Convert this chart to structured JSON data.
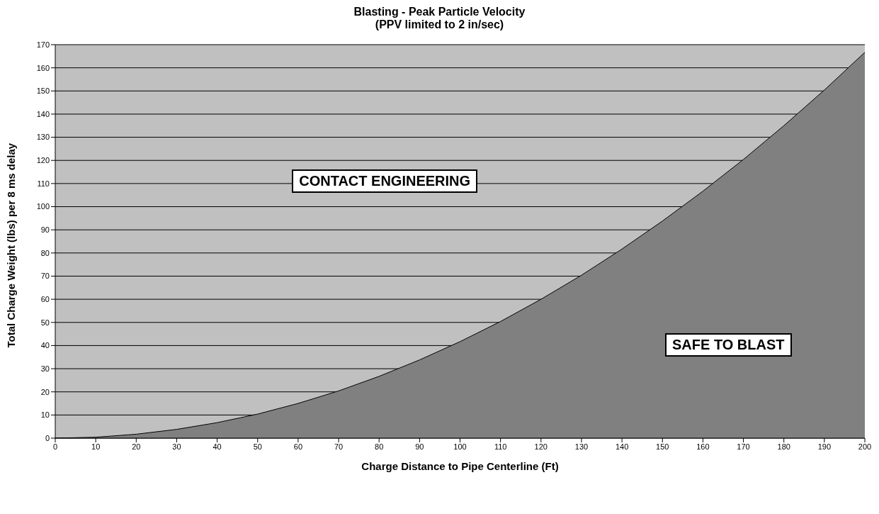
{
  "chart_data": {
    "type": "area",
    "title": "Blasting - Peak Particle Velocity",
    "subtitle": "(PPV limited to 2 in/sec)",
    "xlabel": "Charge Distance to Pipe Centerline (Ft)",
    "ylabel": "Total Charge Weight (lbs) per 8 ms delay",
    "x": [
      0,
      10,
      20,
      30,
      40,
      50,
      60,
      70,
      80,
      90,
      100,
      110,
      120,
      130,
      140,
      150,
      160,
      170,
      180,
      190,
      200
    ],
    "series": [
      {
        "color": "#808080",
        "values": [
          0,
          0.4,
          1.7,
          3.8,
          6.7,
          10.4,
          15,
          20.4,
          26.7,
          33.8,
          41.7,
          50.4,
          60,
          70.4,
          81.7,
          93.8,
          106.7,
          120.4,
          135,
          150.4,
          166.7
        ]
      }
    ],
    "xlim": [
      0,
      200
    ],
    "xticks": [
      0,
      10,
      20,
      30,
      40,
      50,
      60,
      70,
      80,
      90,
      100,
      110,
      120,
      130,
      140,
      150,
      160,
      170,
      180,
      190,
      200
    ],
    "ylim": [
      0,
      170
    ],
    "yticks": [
      0,
      10,
      20,
      30,
      40,
      50,
      60,
      70,
      80,
      90,
      100,
      110,
      120,
      130,
      140,
      150,
      160,
      170
    ],
    "grid": "y",
    "legend": false,
    "annotations": [
      "CONTACT ENGINEERING",
      "SAFE TO BLAST"
    ]
  }
}
